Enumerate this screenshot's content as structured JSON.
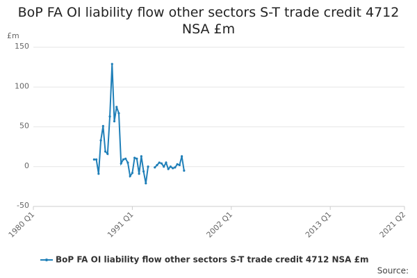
{
  "chart_data": {
    "type": "line",
    "title": "BoP FA OI liability flow other sectors S-T trade credit 4712 NSA £m",
    "y_unit": "£m",
    "source": "Source:",
    "x": [
      "1986 Q4",
      "1987 Q1",
      "1987 Q2",
      "1987 Q3",
      "1987 Q4",
      "1988 Q1",
      "1988 Q2",
      "1988 Q3",
      "1988 Q4",
      "1989 Q1",
      "1989 Q2",
      "1989 Q3",
      "1989 Q4",
      "1990 Q1",
      "1990 Q2",
      "1990 Q3",
      "1990 Q4",
      "1991 Q1",
      "1991 Q2",
      "1991 Q3",
      "1991 Q4",
      "1992 Q1",
      "1992 Q2",
      "1992 Q3",
      "1992 Q4",
      "1993 Q1",
      "1993 Q2",
      "1993 Q3",
      "1993 Q4",
      "1994 Q1",
      "1994 Q2",
      "1994 Q3",
      "1994 Q4",
      "1995 Q1",
      "1995 Q2",
      "1995 Q3",
      "1995 Q4",
      "1996 Q1",
      "1996 Q2",
      "1996 Q3",
      "1996 Q4"
    ],
    "series": [
      {
        "name": "BoP FA OI liability flow other sectors S-T trade credit 4712 NSA £m",
        "color": "#1f7fb8",
        "values": [
          9,
          9,
          -9,
          33,
          51,
          19,
          16,
          63,
          129,
          57,
          75,
          67,
          4,
          9,
          10,
          5,
          -12,
          -8,
          11,
          10,
          -9,
          13,
          -6,
          -21,
          0,
          null,
          null,
          -1,
          2,
          5,
          4,
          0,
          5,
          -3,
          0,
          -2,
          -1,
          3,
          2,
          13,
          -5
        ]
      }
    ],
    "xlim": [
      "1980 Q1",
      "2021 Q2"
    ],
    "xticks": [
      "1980 Q1",
      "1991 Q1",
      "2002 Q1",
      "2013 Q1",
      "2021 Q2"
    ],
    "ylim": [
      -50,
      150
    ],
    "yticks": [
      -50,
      0,
      50,
      100,
      150
    ],
    "grid": true,
    "legend": "bottom"
  }
}
